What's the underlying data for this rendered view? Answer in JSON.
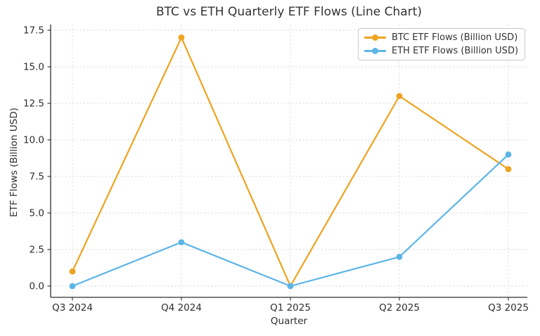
{
  "title": "BTC vs ETH Quarterly ETF Flows (Line Chart)",
  "chart_data": {
    "type": "line",
    "title": "BTC vs ETH Quarterly ETF Flows (Line Chart)",
    "xlabel": "Quarter",
    "ylabel": "ETF Flows (Billion USD)",
    "categories": [
      "Q3 2024",
      "Q4 2024",
      "Q1 2025",
      "Q2 2025",
      "Q3 2025"
    ],
    "series": [
      {
        "name": "BTC ETF Flows (Billion USD)",
        "values": [
          1,
          17,
          0,
          13,
          8
        ],
        "color": "#EEA320"
      },
      {
        "name": "ETH ETF Flows (Billion USD)",
        "values": [
          0,
          3,
          0,
          2,
          9
        ],
        "color": "#5BB5E7"
      }
    ],
    "yticks": [
      0,
      2.5,
      5,
      7.5,
      10,
      12.5,
      15,
      17.5
    ],
    "ytick_labels": [
      "0.0",
      "2.5",
      "5.0",
      "7.5",
      "10.0",
      "12.5",
      "15.0",
      "17.5"
    ],
    "ylim": [
      -0.8,
      17.9
    ],
    "grid": true,
    "legend_position": "upper right",
    "colors": {
      "text": "#333333",
      "grid": "#d6d6d6",
      "spine": "#2e2e2e",
      "background": "#ffffff"
    }
  }
}
